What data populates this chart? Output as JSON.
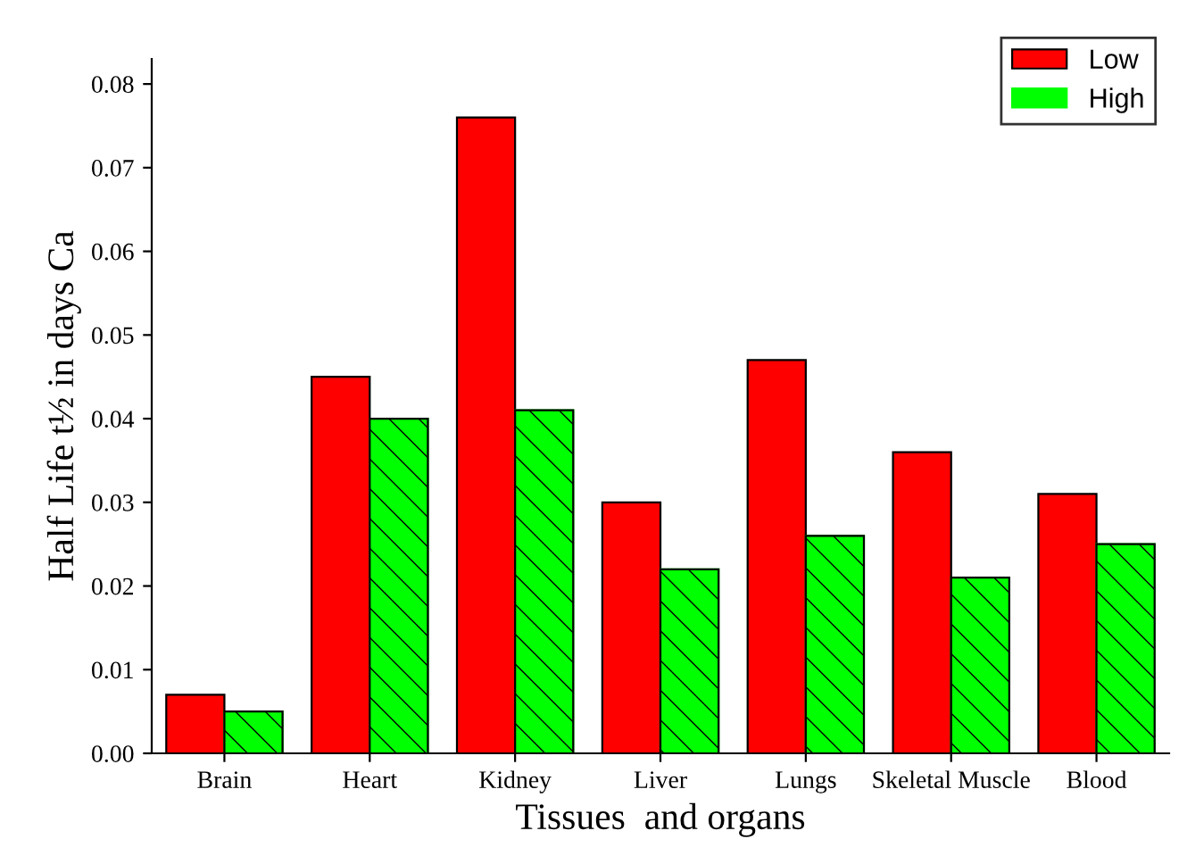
{
  "chart_data": {
    "type": "bar",
    "xlabel": "Tissues  and organs",
    "ylabel": "Half Life t½ in days Ca",
    "categories": [
      "Brain",
      "Heart",
      "Kidney",
      "Liver",
      "Lungs",
      "Skeletal Muscle",
      "Blood"
    ],
    "series": [
      {
        "name": "Low",
        "color": "#ff0000",
        "values": [
          0.007,
          0.045,
          0.076,
          0.03,
          0.047,
          0.036,
          0.031
        ]
      },
      {
        "name": "High",
        "color": "#00ff00",
        "values": [
          0.005,
          0.04,
          0.041,
          0.022,
          0.026,
          0.021,
          0.025
        ]
      }
    ],
    "ylim": [
      0,
      0.083
    ],
    "yticks": [
      {
        "value": 0,
        "label": "0.00"
      },
      {
        "value": 0.01,
        "label": "0.01"
      },
      {
        "value": 0.02,
        "label": "0.02"
      },
      {
        "value": 0.03,
        "label": "0.03"
      },
      {
        "value": 0.04,
        "label": "0.04"
      },
      {
        "value": 0.05,
        "label": "0.05"
      },
      {
        "value": 0.06,
        "label": "0.06"
      },
      {
        "value": 0.07,
        "label": "0.07"
      },
      {
        "value": 0.08,
        "label": "0.08"
      }
    ],
    "legend": "top right",
    "grid": false
  }
}
